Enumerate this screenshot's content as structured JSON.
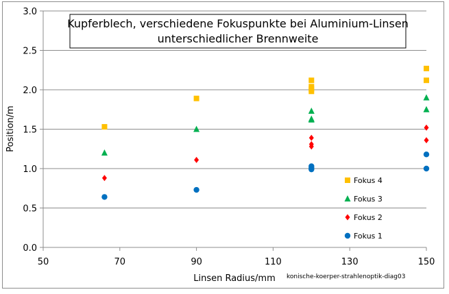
{
  "chart_data": {
    "type": "scatter",
    "title_lines": [
      "Kupferblech, verschiedene Fokuspunkte bei Aluminium-Linsen",
      "unterschiedlicher Brennweite"
    ],
    "xlabel": "Linsen Radius/mm",
    "ylabel": "Position/m",
    "xlim": [
      50,
      150
    ],
    "ylim": [
      0,
      3
    ],
    "xticks": [
      "50",
      "70",
      "90",
      "110",
      "130",
      "150"
    ],
    "yticks": [
      "0.0",
      "0.5",
      "1.0",
      "1.5",
      "2.0",
      "2.5",
      "3.0"
    ],
    "grid": "horizontal",
    "legend_position": "right",
    "series": [
      {
        "name": "Fokus 4",
        "marker": "square",
        "color": "#FFC000",
        "points": [
          [
            66,
            1.53
          ],
          [
            90,
            1.89
          ],
          [
            120,
            2.12
          ],
          [
            120,
            2.04
          ],
          [
            120,
            2.01
          ],
          [
            120,
            1.98
          ],
          [
            150,
            2.27
          ],
          [
            150,
            2.12
          ]
        ]
      },
      {
        "name": "Fokus 3",
        "marker": "triangle",
        "color": "#00B050",
        "points": [
          [
            66,
            1.2
          ],
          [
            90,
            1.5
          ],
          [
            120,
            1.73
          ],
          [
            120,
            1.63
          ],
          [
            120,
            1.62
          ],
          [
            150,
            1.9
          ],
          [
            150,
            1.75
          ]
        ]
      },
      {
        "name": "Fokus 2",
        "marker": "diamond",
        "color": "#FF0000",
        "points": [
          [
            66,
            0.88
          ],
          [
            90,
            1.11
          ],
          [
            120,
            1.39
          ],
          [
            120,
            1.31
          ],
          [
            120,
            1.28
          ],
          [
            150,
            1.52
          ],
          [
            150,
            1.36
          ]
        ]
      },
      {
        "name": "Fokus 1",
        "marker": "circle",
        "color": "#0070C0",
        "points": [
          [
            66,
            0.64
          ],
          [
            90,
            0.73
          ],
          [
            120,
            1.03
          ],
          [
            120,
            1.01
          ],
          [
            120,
            0.99
          ],
          [
            150,
            1.18
          ],
          [
            150,
            1.0
          ]
        ]
      }
    ]
  },
  "footnote": "konische-koerper-strahlenoptik-diag03"
}
